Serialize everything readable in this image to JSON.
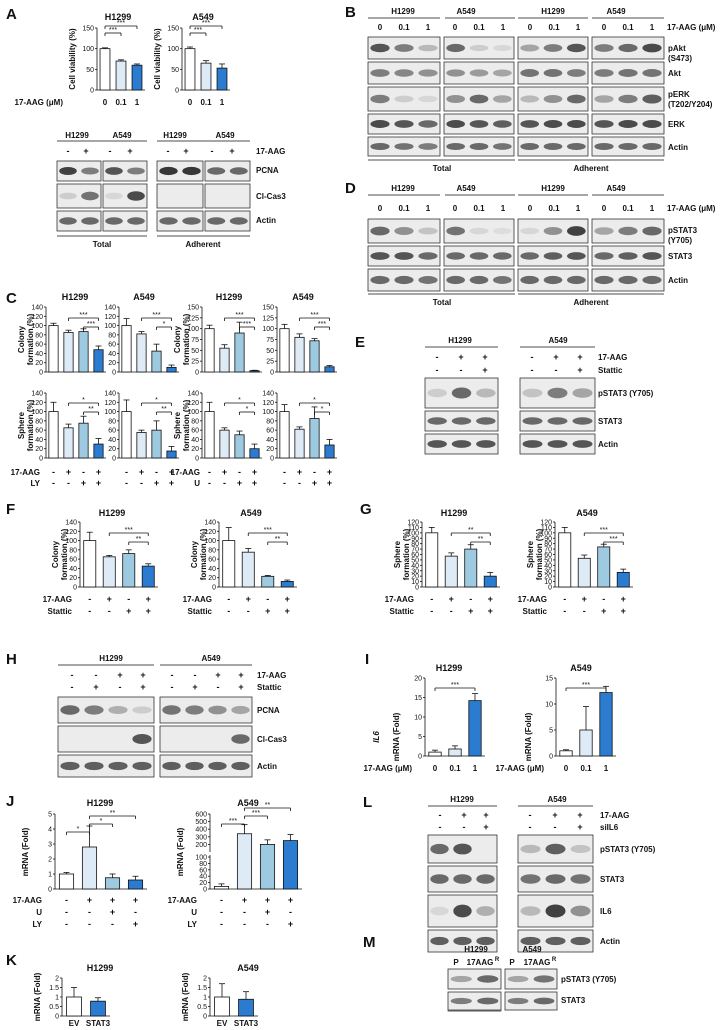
{
  "panel_letters": [
    "A",
    "B",
    "C",
    "D",
    "E",
    "F",
    "G",
    "H",
    "I",
    "J",
    "K",
    "L",
    "M"
  ],
  "cells": {
    "h1299": "H1299",
    "a549": "A549"
  },
  "treat": {
    "aag": "17-AAG",
    "aag_um": "17-AAG (μM)",
    "stattic": "Stattic",
    "u": "U",
    "ly": "LY",
    "siil6": "siIL6",
    "ev": "EV",
    "stat3": "STAT3",
    "p": "P",
    "aagr": "17AAG",
    "r_sup": "R"
  },
  "dose": {
    "d0": "0",
    "d01": "0.1",
    "d1": "1"
  },
  "groups": {
    "total": "Total",
    "adherent": "Adherent"
  },
  "blots": {
    "pcna": "PCNA",
    "clcas3": "Cl-Cas3",
    "actin": "Actin",
    "pakt": "pAkt",
    "pakt_site": "(S473)",
    "akt": "Akt",
    "perk": "pERK",
    "perk_site": "(T202/Y204)",
    "erk": "ERK",
    "pstat3": "pSTAT3",
    "pstat3_site": "(Y705)",
    "pstat3_full": "pSTAT3 (Y705)",
    "stat3": "STAT3",
    "il6": "IL6"
  },
  "ylabels": {
    "viability": "Cell viability (%)",
    "colony1": "Colony",
    "colony2": "formation (%)",
    "sphere1": "Sphere",
    "sphere2": "formation (%)",
    "il6": "mRNA (Fold)",
    "il6_gene": "IL6"
  },
  "sig": {
    "s3": "***",
    "s2": "**",
    "s1": "*"
  },
  "chart_data": [
    {
      "panel": "A",
      "type": "bar",
      "title": "H1299",
      "categories": [
        "0",
        "0.1",
        "1"
      ],
      "values": [
        100,
        70,
        60
      ],
      "ylim": [
        0,
        150
      ],
      "ylabel": "Cell viability (%)",
      "xlabel": "17-AAG (μM)"
    },
    {
      "panel": "A",
      "type": "bar",
      "title": "A549",
      "categories": [
        "0",
        "0.1",
        "1"
      ],
      "values": [
        100,
        65,
        53
      ],
      "ylim": [
        0,
        150
      ],
      "ylabel": "Cell viability (%)",
      "xlabel": "17-AAG (μM)"
    },
    {
      "panel": "C",
      "type": "bar",
      "title": "H1299",
      "categories": [
        "-/-",
        "+/-",
        "-/+",
        "+/+"
      ],
      "values": [
        100,
        85,
        87,
        48
      ],
      "ylim": [
        0,
        140
      ],
      "ylabel": "Colony formation (%)"
    },
    {
      "panel": "C",
      "type": "bar",
      "title": "A549",
      "categories": [
        "-/-",
        "+/-",
        "-/+",
        "+/+"
      ],
      "values": [
        100,
        82,
        45,
        10
      ],
      "ylim": [
        0,
        140
      ],
      "ylabel": "Colony formation (%)"
    },
    {
      "panel": "C",
      "type": "bar",
      "title": "H1299",
      "categories": [
        "-/-",
        "+/-",
        "-/+",
        "+/+"
      ],
      "values": [
        100,
        55,
        90,
        3
      ],
      "ylim": [
        0,
        150
      ],
      "ylabel": "Colony formation (%)"
    },
    {
      "panel": "C",
      "type": "bar",
      "title": "A549",
      "categories": [
        "-/-",
        "+/-",
        "-/+",
        "+/+"
      ],
      "values": [
        100,
        80,
        72,
        12
      ],
      "ylim": [
        0,
        150
      ],
      "ylabel": "Colony formation (%)"
    },
    {
      "panel": "C",
      "type": "bar",
      "categories": [
        "-/-",
        "+/-",
        "-/+",
        "+/+"
      ],
      "values": [
        100,
        65,
        75,
        30
      ],
      "ylim": [
        0,
        140
      ],
      "ylabel": "Sphere formation (%)"
    },
    {
      "panel": "C",
      "type": "bar",
      "categories": [
        "-/-",
        "+/-",
        "-/+",
        "+/+"
      ],
      "values": [
        100,
        55,
        60,
        15
      ],
      "ylim": [
        0,
        140
      ],
      "ylabel": "Sphere formation (%)"
    },
    {
      "panel": "C",
      "type": "bar",
      "categories": [
        "-/-",
        "+/-",
        "-/+",
        "+/+"
      ],
      "values": [
        100,
        60,
        50,
        20
      ],
      "ylim": [
        0,
        140
      ],
      "ylabel": "Sphere formation (%)"
    },
    {
      "panel": "C",
      "type": "bar",
      "categories": [
        "-/-",
        "+/-",
        "-/+",
        "+/+"
      ],
      "values": [
        100,
        62,
        85,
        28
      ],
      "ylim": [
        0,
        140
      ],
      "ylabel": "Sphere formation (%)"
    },
    {
      "panel": "F",
      "type": "bar",
      "title": "H1299",
      "categories": [
        "-/-",
        "+/-",
        "-/+",
        "+/+"
      ],
      "values": [
        100,
        65,
        72,
        45
      ],
      "ylim": [
        0,
        140
      ],
      "ylabel": "Colony formation (%)"
    },
    {
      "panel": "F",
      "type": "bar",
      "title": "A549",
      "categories": [
        "-/-",
        "+/-",
        "-/+",
        "+/+"
      ],
      "values": [
        100,
        75,
        23,
        12
      ],
      "ylim": [
        0,
        140
      ],
      "ylabel": "Colony formation (%)"
    },
    {
      "panel": "G",
      "type": "bar",
      "title": "H1299",
      "categories": [
        "-/-",
        "+/-",
        "-/+",
        "+/+"
      ],
      "values": [
        100,
        57,
        70,
        20
      ],
      "ylim": [
        0,
        120
      ],
      "ylabel": "Sphere formation (%)"
    },
    {
      "panel": "G",
      "type": "bar",
      "title": "A549",
      "categories": [
        "-/-",
        "+/-",
        "-/+",
        "+/+"
      ],
      "values": [
        100,
        53,
        74,
        27
      ],
      "ylim": [
        0,
        120
      ],
      "ylabel": "Sphere formation (%)"
    },
    {
      "panel": "I",
      "type": "bar",
      "title": "H1299",
      "categories": [
        "0",
        "0.1",
        "1"
      ],
      "values": [
        1,
        1.8,
        14.2
      ],
      "ylim": [
        0,
        20
      ],
      "ylabel": "IL6 mRNA (Fold)",
      "xlabel": "17-AAG (μM)"
    },
    {
      "panel": "I",
      "type": "bar",
      "title": "A549",
      "categories": [
        "0",
        "0.1",
        "1"
      ],
      "values": [
        1,
        5,
        12.2
      ],
      "ylim": [
        0,
        15
      ],
      "ylabel": "IL6 mRNA (Fold)",
      "xlabel": "17-AAG (μM)"
    },
    {
      "panel": "J",
      "type": "bar",
      "title": "H1299",
      "categories": [
        "-/-/-",
        "+/-/-",
        "+/+/-",
        "+/-/+"
      ],
      "values": [
        1,
        2.8,
        0.75,
        0.6
      ],
      "ylim": [
        0,
        5
      ],
      "ylabel": "IL6 mRNA (Fold)"
    },
    {
      "panel": "J",
      "type": "bar",
      "title": "A549",
      "categories": [
        "-/-/-",
        "+/-/-",
        "+/+/-",
        "+/-/+"
      ],
      "values": [
        1,
        340,
        200,
        250
      ],
      "ylabel": "IL6 mRNA (Fold)"
    },
    {
      "panel": "K",
      "type": "bar",
      "title": "H1299",
      "categories": [
        "EV",
        "STAT3"
      ],
      "values": [
        1,
        0.78
      ],
      "ylim": [
        0,
        2
      ],
      "ylabel": "IL6 mRNA (Fold)"
    },
    {
      "panel": "K",
      "type": "bar",
      "title": "A549",
      "categories": [
        "EV",
        "STAT3"
      ],
      "values": [
        1,
        0.88
      ],
      "ylim": [
        0,
        2
      ],
      "ylabel": "IL6 mRNA (Fold)"
    }
  ],
  "axis_ticks": {
    "a": [
      "0",
      "50",
      "100",
      "150"
    ],
    "c_col": [
      "0",
      "20",
      "40",
      "60",
      "80",
      "100",
      "120",
      "140"
    ],
    "c_col2": [
      "0",
      "25",
      "50",
      "75",
      "100",
      "125",
      "150"
    ],
    "g": [
      "0",
      "10",
      "20",
      "30",
      "40",
      "50",
      "60",
      "70",
      "80",
      "90",
      "100",
      "110",
      "120"
    ],
    "i1": [
      "0",
      "5",
      "10",
      "15",
      "20"
    ],
    "i2": [
      "0",
      "5",
      "10",
      "15"
    ],
    "j1": [
      "0",
      "1",
      "2",
      "3",
      "4",
      "5"
    ],
    "j2": [
      "0",
      "20",
      "40",
      "60",
      "80",
      "100",
      "200",
      "300",
      "400",
      "500",
      "600"
    ],
    "k": [
      "0",
      "0.5",
      "1",
      "1.5",
      "2"
    ]
  },
  "colors": {
    "c0": "#ffffff",
    "c1": "#deebf7",
    "c2": "#9ecae1",
    "c3": "#2b7bd1"
  }
}
